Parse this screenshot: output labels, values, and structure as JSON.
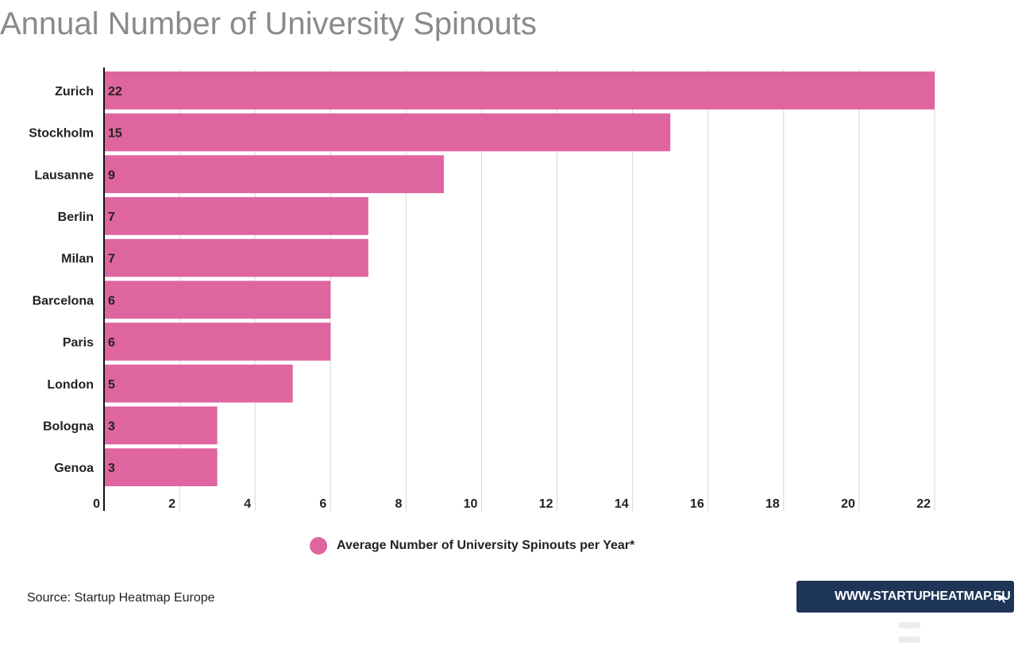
{
  "title": "Annual Number of University Spinouts",
  "chart_data": {
    "type": "bar",
    "orientation": "horizontal",
    "categories": [
      "Zurich",
      "Stockholm",
      "Lausanne",
      "Berlin",
      "Milan",
      "Barcelona",
      "Paris",
      "London",
      "Bologna",
      "Genoa"
    ],
    "series": [
      {
        "name": "Average Number of University Spinouts per Year*",
        "values": [
          22,
          15,
          9,
          7,
          7,
          6,
          6,
          5,
          3,
          3
        ]
      }
    ],
    "xlim": [
      0,
      22
    ],
    "xticks": [
      0,
      2,
      4,
      6,
      8,
      10,
      12,
      14,
      16,
      18,
      20,
      22
    ],
    "grid": true,
    "legend_position": "bottom",
    "data_labels": true,
    "bar_color": "#df65a0"
  },
  "legend": {
    "label": "Average Number of University Spinouts per Year*",
    "color": "#df65a0"
  },
  "source": "Source: Startup Heatmap Europe",
  "banner": {
    "text": "WWW.STARTUPHEATMAP.EU",
    "background": "#1d3557",
    "icon": "cursor-icon"
  }
}
